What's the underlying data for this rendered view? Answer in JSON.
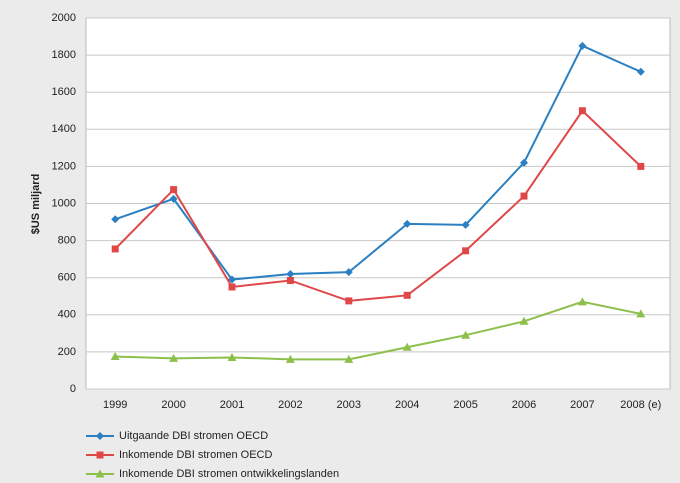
{
  "chart_data": {
    "type": "line",
    "ylabel": "$US miljard",
    "categories": [
      "1999",
      "2000",
      "2001",
      "2002",
      "2003",
      "2004",
      "2005",
      "2006",
      "2007",
      "2008 (e)"
    ],
    "series": [
      {
        "name": "Uitgaande DBI stromen OECD",
        "color": "#2a80c2",
        "marker": "diamond",
        "values": [
          915,
          1025,
          590,
          620,
          630,
          890,
          885,
          1220,
          1850,
          1710
        ]
      },
      {
        "name": "Inkomende DBI stromen OECD",
        "color": "#e04848",
        "marker": "square",
        "values": [
          755,
          1075,
          550,
          585,
          475,
          505,
          745,
          1040,
          1500,
          1200
        ]
      },
      {
        "name": "Inkomende DBI stromen ontwikkelingslanden",
        "color": "#8cc04a",
        "marker": "triangle",
        "values": [
          175,
          165,
          170,
          160,
          160,
          225,
          290,
          365,
          470,
          405
        ]
      }
    ],
    "ylim": [
      0,
      2000
    ],
    "yticks": [
      0,
      200,
      400,
      600,
      800,
      1000,
      1200,
      1400,
      1600,
      1800,
      2000
    ],
    "grid": true,
    "legend": "bottom-left"
  }
}
